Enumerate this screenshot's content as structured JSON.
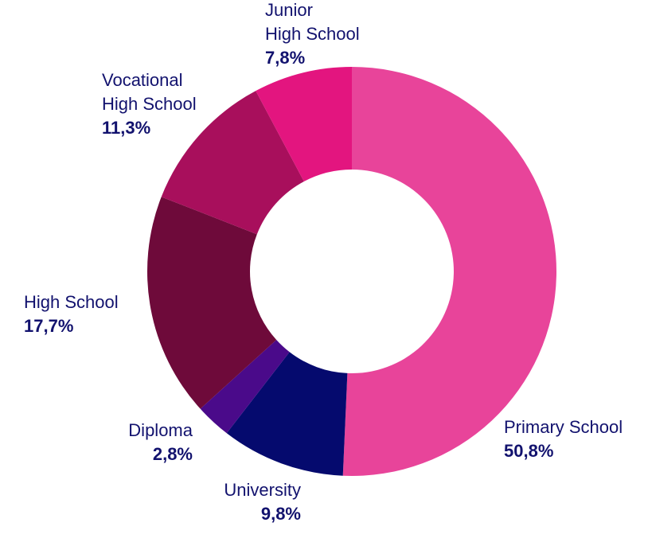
{
  "chart_data": {
    "type": "donut",
    "categories": [
      "Primary School",
      "University",
      "Diploma",
      "High School",
      "Vocational High School",
      "Junior High School"
    ],
    "values": [
      50.8,
      9.8,
      2.8,
      17.7,
      11.3,
      7.8
    ],
    "value_labels": [
      "50,8%",
      "9,8%",
      "2,8%",
      "17,7%",
      "11,3%",
      "7,8%"
    ],
    "colors": [
      "#e8449a",
      "#050a6e",
      "#4a0a8a",
      "#6e0a3a",
      "#a80f5c",
      "#e3157f"
    ]
  }
}
